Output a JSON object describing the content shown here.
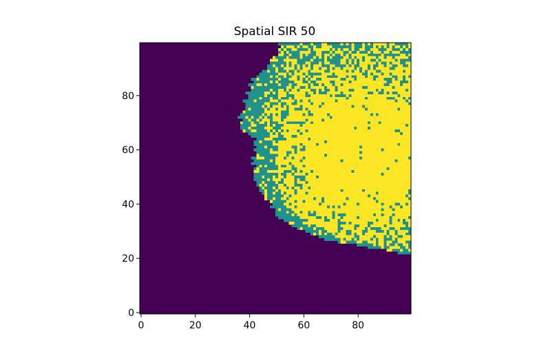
{
  "chart_data": {
    "type": "heatmap",
    "title": "Spatial SIR 50",
    "xlabel": "",
    "ylabel": "",
    "grid_size": [
      100,
      100
    ],
    "xlim": [
      -0.5,
      99.5
    ],
    "ylim": [
      99.5,
      -0.5
    ],
    "xticks": [
      0,
      20,
      40,
      60,
      80
    ],
    "yticks": [
      0,
      20,
      40,
      60,
      80
    ],
    "colormap": "viridis",
    "states": [
      {
        "value": 0,
        "color": "#440154"
      },
      {
        "value": 1,
        "color": "#21918c"
      },
      {
        "value": 2,
        "color": "#fde725"
      }
    ],
    "front_boundary": {
      "rows": [
        0,
        5,
        10,
        15,
        20,
        25,
        27,
        30,
        35,
        40,
        45,
        50,
        55,
        60,
        65,
        68,
        70,
        73,
        75,
        78
      ],
      "outer_col": [
        51,
        49,
        44,
        40,
        39,
        37,
        36,
        37,
        41,
        42,
        42,
        41,
        44,
        48,
        52,
        58,
        62,
        72,
        85,
        99
      ],
      "inner_col": [
        55,
        54,
        51,
        48,
        46,
        44,
        43,
        45,
        48,
        49,
        49,
        49,
        51,
        54,
        58,
        63,
        68,
        78,
        90,
        99
      ]
    },
    "recovered_core": {
      "center": [
        82,
        40
      ],
      "radius": 22
    }
  }
}
